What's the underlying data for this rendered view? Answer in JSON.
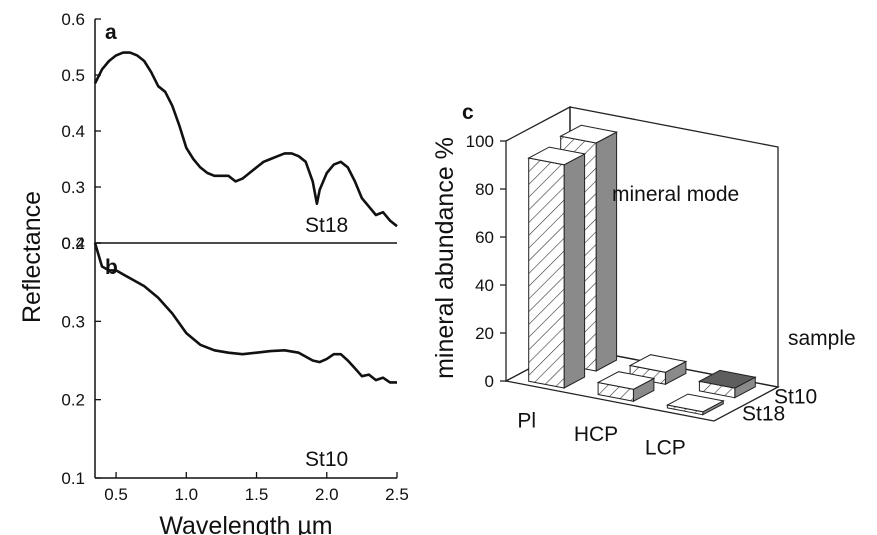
{
  "chart_data": [
    {
      "panel": "a",
      "type": "line",
      "sample_label": "St18",
      "xlabel": "Wavelength µm",
      "ylabel": "Reflectance",
      "xlim": [
        0.35,
        2.5
      ],
      "ylim": [
        0.2,
        0.6
      ],
      "yticks": [
        "0.2",
        "0.3",
        "0.4",
        "0.5",
        "0.6"
      ],
      "series": [
        {
          "x": [
            0.35,
            0.4,
            0.45,
            0.5,
            0.55,
            0.6,
            0.65,
            0.7,
            0.75,
            0.8,
            0.85,
            0.9,
            0.95,
            1.0,
            1.05,
            1.1,
            1.15,
            1.2,
            1.25,
            1.3,
            1.35,
            1.4,
            1.45,
            1.5,
            1.55,
            1.6,
            1.65,
            1.7,
            1.75,
            1.8,
            1.85,
            1.9,
            1.93,
            1.95,
            2.0,
            2.05,
            2.1,
            2.15,
            2.2,
            2.25,
            2.3,
            2.35,
            2.4,
            2.45,
            2.5
          ],
          "y": [
            0.485,
            0.51,
            0.525,
            0.535,
            0.54,
            0.54,
            0.535,
            0.525,
            0.505,
            0.48,
            0.47,
            0.445,
            0.41,
            0.37,
            0.35,
            0.335,
            0.325,
            0.32,
            0.32,
            0.32,
            0.31,
            0.315,
            0.325,
            0.335,
            0.345,
            0.35,
            0.355,
            0.36,
            0.36,
            0.355,
            0.345,
            0.31,
            0.27,
            0.295,
            0.325,
            0.34,
            0.345,
            0.335,
            0.31,
            0.28,
            0.265,
            0.25,
            0.255,
            0.24,
            0.23
          ]
        }
      ]
    },
    {
      "panel": "b",
      "type": "line",
      "sample_label": "St10",
      "xlabel": "Wavelength µm",
      "ylabel": "Reflectance",
      "xlim": [
        0.35,
        2.5
      ],
      "ylim": [
        0.1,
        0.4
      ],
      "yticks": [
        "0.1",
        "0.2",
        "0.3",
        "0.4"
      ],
      "xticks": [
        "0.5",
        "1.0",
        "1.5",
        "2.0",
        "2.5"
      ],
      "series": [
        {
          "x": [
            0.35,
            0.4,
            0.45,
            0.5,
            0.6,
            0.7,
            0.8,
            0.9,
            1.0,
            1.1,
            1.2,
            1.3,
            1.4,
            1.5,
            1.6,
            1.7,
            1.8,
            1.9,
            1.95,
            2.0,
            2.05,
            2.1,
            2.15,
            2.2,
            2.25,
            2.3,
            2.35,
            2.4,
            2.45,
            2.5
          ],
          "y": [
            0.4,
            0.37,
            0.365,
            0.365,
            0.355,
            0.345,
            0.33,
            0.31,
            0.285,
            0.27,
            0.263,
            0.26,
            0.258,
            0.26,
            0.262,
            0.263,
            0.26,
            0.25,
            0.248,
            0.252,
            0.258,
            0.258,
            0.25,
            0.24,
            0.23,
            0.232,
            0.225,
            0.228,
            0.222,
            0.222
          ]
        }
      ]
    },
    {
      "panel": "c",
      "type": "bar",
      "projection": "3d",
      "ylabel": "mineral abundance %",
      "annotation": "mineral mode",
      "depth_axis_label": "sample",
      "ylim": [
        0,
        100
      ],
      "yticks": [
        "0",
        "20",
        "40",
        "60",
        "80",
        "100"
      ],
      "categories": [
        "Pl",
        "HCP",
        "LCP"
      ],
      "series": [
        {
          "name": "St18",
          "values": [
            93,
            5,
            0
          ]
        },
        {
          "name": "St10",
          "values": [
            95,
            5,
            4
          ]
        }
      ]
    }
  ]
}
